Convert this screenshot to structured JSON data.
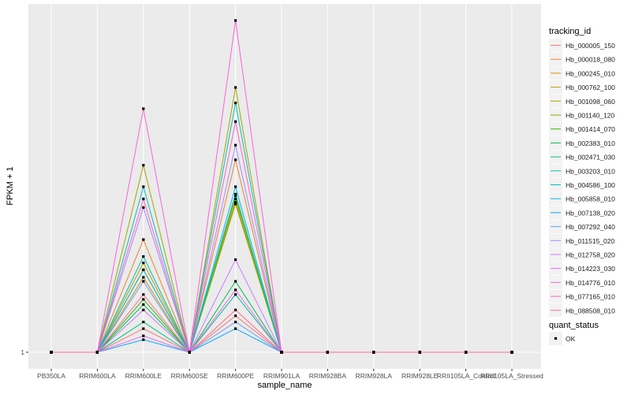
{
  "chart_data": {
    "type": "line",
    "xlabel": "sample_name",
    "ylabel": "FPKM + 1",
    "y_ticks": [
      1
    ],
    "y_tick_labels": [
      "1"
    ],
    "categories": [
      "PB350LA",
      "RRIM600LA",
      "RRIM600LE",
      "RRIM600SE",
      "RRIM600PE",
      "RRIM901LA",
      "RRIM928BA",
      "RRIM928LA",
      "RRIM928LE",
      "RRII105LA_Control",
      "RRII105LA_Stressed"
    ],
    "grid": true,
    "legend_position": "right",
    "legend_title": "tracking_id",
    "shape_legend": {
      "title": "quant_status",
      "entries": [
        {
          "label": "OK",
          "symbol": "square"
        }
      ]
    },
    "series": [
      {
        "name": "Hb_000005_150",
        "color": "#F8766D",
        "values": [
          1,
          1,
          1.3,
          1,
          1.5,
          1,
          1,
          1,
          1,
          1,
          1
        ]
      },
      {
        "name": "Hb_000018_080",
        "color": "#EA8331",
        "values": [
          1,
          1,
          3.5,
          1,
          8.5,
          1,
          1,
          1,
          1,
          1,
          1
        ]
      },
      {
        "name": "Hb_000245_010",
        "color": "#D89000",
        "values": [
          1,
          1,
          2.3,
          1,
          5.3,
          1,
          1,
          1,
          1,
          1,
          1
        ]
      },
      {
        "name": "Hb_000762_100",
        "color": "#C09B00",
        "values": [
          1,
          1,
          2.7,
          1,
          5.5,
          1,
          1,
          1,
          1,
          1,
          1
        ]
      },
      {
        "name": "Hb_001098_060",
        "color": "#A3A500",
        "values": [
          1,
          1,
          8.0,
          1,
          19.0,
          1,
          1,
          1,
          1,
          1,
          1
        ]
      },
      {
        "name": "Hb_001140_120",
        "color": "#7CAE00",
        "values": [
          1,
          1,
          2.5,
          1,
          5.2,
          1,
          1,
          1,
          1,
          1,
          1
        ]
      },
      {
        "name": "Hb_001414_070",
        "color": "#39B600",
        "values": [
          1,
          1,
          1.8,
          1,
          5.7,
          1,
          1,
          1,
          1,
          1,
          1
        ]
      },
      {
        "name": "Hb_002383_010",
        "color": "#00BB4E",
        "values": [
          1,
          1,
          1.7,
          1,
          2.2,
          1,
          1,
          1,
          1,
          1,
          1
        ]
      },
      {
        "name": "Hb_002471_030",
        "color": "#00BF7D",
        "values": [
          1,
          1,
          1.4,
          1,
          1.9,
          1,
          1,
          1,
          1,
          1,
          1
        ]
      },
      {
        "name": "Hb_003203_010",
        "color": "#00C1A3",
        "values": [
          1,
          1,
          2.9,
          1,
          5.8,
          1,
          1,
          1,
          1,
          1,
          1
        ]
      },
      {
        "name": "Hb_004586_100",
        "color": "#00BFC4",
        "values": [
          1,
          1,
          6.3,
          1,
          16.0,
          1,
          1,
          1,
          1,
          1,
          1
        ]
      },
      {
        "name": "Hb_005858_010",
        "color": "#00B8E7",
        "values": [
          1,
          1,
          2.5,
          1,
          6.3,
          1,
          1,
          1,
          1,
          1,
          1
        ]
      },
      {
        "name": "Hb_007138_020",
        "color": "#00ABFD",
        "values": [
          1,
          1,
          1.15,
          1,
          1.3,
          1,
          1,
          1,
          1,
          1,
          1
        ]
      },
      {
        "name": "Hb_007292_040",
        "color": "#619CFF",
        "values": [
          1,
          1,
          2.2,
          1,
          1.4,
          1,
          1,
          1,
          1,
          1,
          1
        ]
      },
      {
        "name": "Hb_011515_020",
        "color": "#A58AFF",
        "values": [
          1,
          1,
          5.0,
          1,
          10.0,
          1,
          1,
          1,
          1,
          1,
          1
        ]
      },
      {
        "name": "Hb_012758_020",
        "color": "#C77CFF",
        "values": [
          1,
          1,
          1.6,
          1,
          2.8,
          1,
          1,
          1,
          1,
          1,
          1
        ]
      },
      {
        "name": "Hb_014223_030",
        "color": "#E76BF3",
        "values": [
          1,
          1,
          1.2,
          1,
          2.0,
          1,
          1,
          1,
          1,
          1,
          1
        ]
      },
      {
        "name": "Hb_014776_010",
        "color": "#FA62DB",
        "values": [
          1,
          1,
          15.0,
          1,
          40.0,
          1,
          1,
          1,
          1,
          1,
          1
        ]
      },
      {
        "name": "Hb_077165_010",
        "color": "#FF62BC",
        "values": [
          1,
          1,
          5.5,
          1,
          13.0,
          1,
          1,
          1,
          1,
          1,
          1
        ]
      },
      {
        "name": "Hb_088508_010",
        "color": "#FF6C91",
        "values": [
          1,
          1,
          1.9,
          1,
          1.6,
          1,
          1,
          1,
          1,
          1,
          1
        ]
      }
    ]
  }
}
